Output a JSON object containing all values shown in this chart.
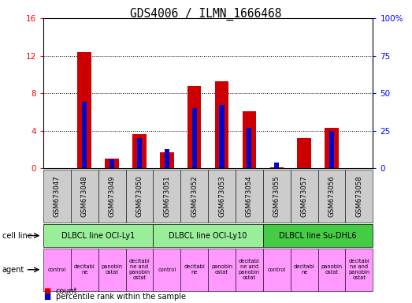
{
  "title": "GDS4006 / ILMN_1666468",
  "samples": [
    "GSM673047",
    "GSM673048",
    "GSM673049",
    "GSM673050",
    "GSM673051",
    "GSM673052",
    "GSM673053",
    "GSM673054",
    "GSM673055",
    "GSM673057",
    "GSM673056",
    "GSM673058"
  ],
  "count_values": [
    0.0,
    12.4,
    1.0,
    3.6,
    1.7,
    8.8,
    9.3,
    6.1,
    0.1,
    3.2,
    4.3,
    0.0
  ],
  "percentile_values": [
    0.0,
    44.0,
    6.0,
    20.0,
    12.5,
    40.0,
    42.0,
    27.0,
    3.5,
    0.0,
    25.0,
    0.0
  ],
  "ylim_left": [
    0,
    16
  ],
  "ylim_right": [
    0,
    100
  ],
  "yticks_left": [
    0,
    4,
    8,
    12,
    16
  ],
  "yticks_right": [
    0,
    25,
    50,
    75,
    100
  ],
  "count_color": "#cc0000",
  "percentile_color": "#0000cc",
  "cell_line_groups": [
    {
      "label": "DLBCL line OCI-Ly1",
      "bars": [
        0,
        1,
        2,
        3
      ],
      "color": "#99ee99"
    },
    {
      "label": "DLBCL line OCI-Ly10",
      "bars": [
        4,
        5,
        6,
        7
      ],
      "color": "#99ee99"
    },
    {
      "label": "DLBCL line Su-DHL6",
      "bars": [
        8,
        9,
        10,
        11
      ],
      "color": "#44cc44"
    }
  ],
  "agent_labels": [
    "control",
    "decitabi\nne",
    "panobin\nostat",
    "decitabi\nne and\npanobin\nostat",
    "control",
    "decitabi\nne",
    "panobin\nostat",
    "decitabi\nne and\npanobin\nostat",
    "control",
    "decitabi\nne",
    "panobin\nostat",
    "decitabi\nne and\npanobin\nostat"
  ],
  "agent_color": "#ff99ff",
  "tick_bg_color": "#cccccc",
  "bar_width": 0.5,
  "grid_dotted_at": [
    4,
    8,
    12
  ]
}
